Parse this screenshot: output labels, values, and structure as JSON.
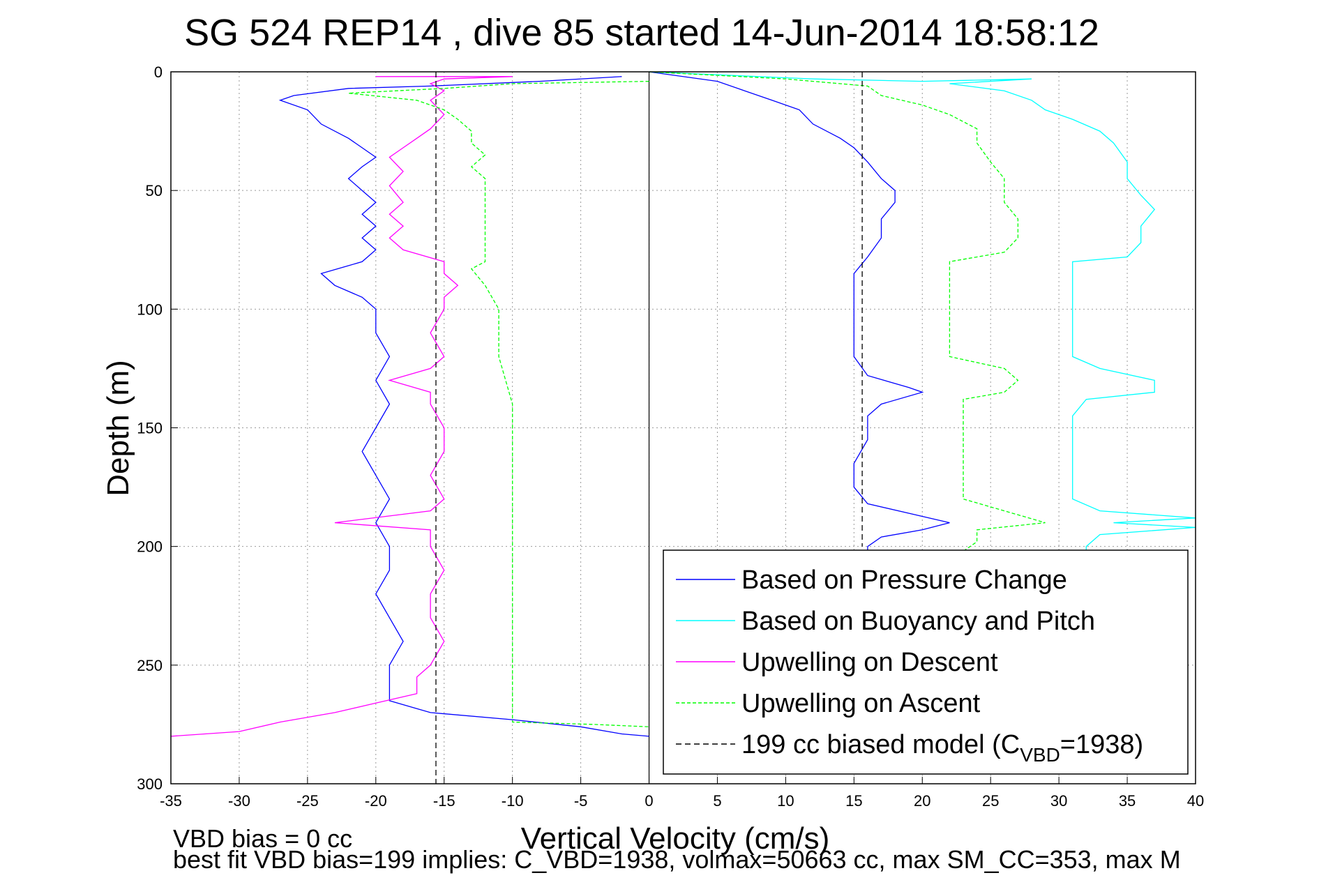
{
  "chart_data": {
    "type": "line",
    "title": "SG 524   REP14  , dive 85 started 14-Jun-2014 18:58:12",
    "xlabel": "Vertical Velocity (cm/s)",
    "ylabel": "Depth (m)",
    "xlim": [
      -35,
      40
    ],
    "ylim": [
      0,
      300
    ],
    "y_reversed": true,
    "grid": true,
    "legend_placement": "bottom-right",
    "x_ticks": [
      "-35",
      "-30",
      "-25",
      "-20",
      "-15",
      "-10",
      "-5",
      "0",
      "5",
      "10",
      "15",
      "20",
      "25",
      "30",
      "35",
      "40"
    ],
    "y_ticks": [
      "0",
      "50",
      "100",
      "150",
      "200",
      "250",
      "300"
    ],
    "series": [
      {
        "name": "Based on Pressure Change",
        "color": "#0000ff",
        "style": "solid",
        "points": [
          [
            -2,
            2
          ],
          [
            -8,
            4
          ],
          [
            -16,
            6
          ],
          [
            -22,
            7
          ],
          [
            -26,
            10
          ],
          [
            -27,
            12
          ],
          [
            -25,
            16
          ],
          [
            -24,
            22
          ],
          [
            -22,
            28
          ],
          [
            -21,
            32
          ],
          [
            -20,
            36
          ],
          [
            -21,
            40
          ],
          [
            -22,
            45
          ],
          [
            -21,
            50
          ],
          [
            -20,
            55
          ],
          [
            -21,
            60
          ],
          [
            -20,
            65
          ],
          [
            -21,
            70
          ],
          [
            -20,
            75
          ],
          [
            -21,
            80
          ],
          [
            -24,
            85
          ],
          [
            -23,
            90
          ],
          [
            -21,
            95
          ],
          [
            -20,
            100
          ],
          [
            -20,
            110
          ],
          [
            -19,
            120
          ],
          [
            -20,
            130
          ],
          [
            -19,
            140
          ],
          [
            -20,
            150
          ],
          [
            -21,
            160
          ],
          [
            -20,
            170
          ],
          [
            -19,
            180
          ],
          [
            -20,
            190
          ],
          [
            -19,
            200
          ],
          [
            -19,
            210
          ],
          [
            -20,
            220
          ],
          [
            -19,
            230
          ],
          [
            -18,
            240
          ],
          [
            -19,
            250
          ],
          [
            -19,
            260
          ],
          [
            -19,
            265
          ],
          [
            -16,
            270
          ],
          [
            -10,
            273
          ],
          [
            -5,
            276
          ],
          [
            -2,
            279
          ],
          [
            0,
            280
          ]
        ]
      },
      {
        "name": "Based on Pressure Change",
        "color": "#0000ff",
        "style": "solid",
        "points": [
          [
            0,
            0
          ],
          [
            5,
            4
          ],
          [
            7,
            8
          ],
          [
            9,
            12
          ],
          [
            11,
            16
          ],
          [
            12,
            22
          ],
          [
            14,
            28
          ],
          [
            15,
            32
          ],
          [
            16,
            38
          ],
          [
            17,
            45
          ],
          [
            18,
            50
          ],
          [
            18,
            55
          ],
          [
            17,
            62
          ],
          [
            17,
            70
          ],
          [
            16,
            78
          ],
          [
            15,
            85
          ],
          [
            15,
            95
          ],
          [
            15,
            110
          ],
          [
            15,
            120
          ],
          [
            16,
            128
          ],
          [
            19,
            133
          ],
          [
            20,
            135
          ],
          [
            17,
            140
          ],
          [
            16,
            145
          ],
          [
            16,
            155
          ],
          [
            15,
            165
          ],
          [
            15,
            175
          ],
          [
            16,
            182
          ],
          [
            19,
            186
          ],
          [
            22,
            190
          ],
          [
            20,
            193
          ],
          [
            17,
            196
          ],
          [
            16,
            200
          ],
          [
            16,
            202
          ]
        ]
      },
      {
        "name": "Based on Buoyancy and Pitch",
        "color": "#00ffff",
        "style": "solid",
        "points": [
          [
            0,
            0
          ],
          [
            12,
            3
          ],
          [
            20,
            4
          ],
          [
            28,
            3
          ],
          [
            22,
            5
          ],
          [
            26,
            8
          ],
          [
            28,
            12
          ],
          [
            29,
            16
          ],
          [
            31,
            20
          ],
          [
            33,
            25
          ],
          [
            34,
            30
          ],
          [
            35,
            38
          ],
          [
            35,
            45
          ],
          [
            36,
            52
          ],
          [
            37,
            58
          ],
          [
            36,
            65
          ],
          [
            36,
            72
          ],
          [
            35,
            78
          ],
          [
            31,
            80
          ],
          [
            31,
            90
          ],
          [
            31,
            100
          ],
          [
            31,
            110
          ],
          [
            31,
            120
          ],
          [
            33,
            125
          ],
          [
            37,
            130
          ],
          [
            37,
            135
          ],
          [
            32,
            138
          ],
          [
            31,
            145
          ],
          [
            31,
            160
          ],
          [
            31,
            170
          ],
          [
            31,
            180
          ],
          [
            33,
            185
          ],
          [
            40,
            188
          ],
          [
            34,
            190
          ],
          [
            40,
            192
          ],
          [
            33,
            195
          ],
          [
            32,
            200
          ],
          [
            32,
            202
          ]
        ]
      },
      {
        "name": "Upwelling on Descent",
        "color": "#ff00ff",
        "style": "solid",
        "points": [
          [
            -20,
            2
          ],
          [
            -10,
            2
          ],
          [
            -15,
            3
          ],
          [
            -16,
            5
          ],
          [
            -15,
            8
          ],
          [
            -16,
            12
          ],
          [
            -15,
            18
          ],
          [
            -16,
            24
          ],
          [
            -17,
            28
          ],
          [
            -18,
            32
          ],
          [
            -19,
            36
          ],
          [
            -18,
            42
          ],
          [
            -19,
            48
          ],
          [
            -18,
            55
          ],
          [
            -19,
            60
          ],
          [
            -18,
            65
          ],
          [
            -19,
            70
          ],
          [
            -18,
            75
          ],
          [
            -15,
            80
          ],
          [
            -15,
            85
          ],
          [
            -14,
            90
          ],
          [
            -15,
            95
          ],
          [
            -15,
            100
          ],
          [
            -16,
            110
          ],
          [
            -15,
            120
          ],
          [
            -16,
            125
          ],
          [
            -19,
            130
          ],
          [
            -16,
            135
          ],
          [
            -16,
            140
          ],
          [
            -15,
            150
          ],
          [
            -15,
            160
          ],
          [
            -16,
            170
          ],
          [
            -15,
            180
          ],
          [
            -16,
            185
          ],
          [
            -23,
            190
          ],
          [
            -16,
            193
          ],
          [
            -16,
            200
          ],
          [
            -15,
            210
          ],
          [
            -16,
            220
          ],
          [
            -16,
            230
          ],
          [
            -15,
            240
          ],
          [
            -16,
            250
          ],
          [
            -17,
            255
          ],
          [
            -17,
            262
          ],
          [
            -20,
            266
          ],
          [
            -23,
            270
          ],
          [
            -27,
            274
          ],
          [
            -30,
            278
          ],
          [
            -35,
            280
          ]
        ]
      },
      {
        "name": "Upwelling on Ascent",
        "color": "#00ff00",
        "style": "dashed",
        "points": [
          [
            0,
            4
          ],
          [
            -10,
            5
          ],
          [
            -15,
            7
          ],
          [
            -22,
            9
          ],
          [
            -17,
            12
          ],
          [
            -15,
            16
          ],
          [
            -14,
            20
          ],
          [
            -13,
            25
          ],
          [
            -13,
            30
          ],
          [
            -12,
            35
          ],
          [
            -13,
            40
          ],
          [
            -12,
            45
          ],
          [
            -12,
            55
          ],
          [
            -12,
            65
          ],
          [
            -12,
            75
          ],
          [
            -12,
            80
          ],
          [
            -13,
            83
          ],
          [
            -12,
            90
          ],
          [
            -11,
            100
          ],
          [
            -11,
            120
          ],
          [
            -10,
            140
          ],
          [
            -10,
            160
          ],
          [
            -10,
            180
          ],
          [
            -10,
            200
          ],
          [
            -10,
            220
          ],
          [
            -10,
            230
          ],
          [
            -10,
            240
          ],
          [
            -10,
            260
          ],
          [
            -10,
            274
          ],
          [
            -4,
            275
          ],
          [
            0,
            276
          ]
        ]
      },
      {
        "name": "Upwelling on Ascent",
        "color": "#00ff00",
        "style": "dashed",
        "points": [
          [
            0,
            0
          ],
          [
            10,
            3
          ],
          [
            14,
            5
          ],
          [
            16,
            6
          ],
          [
            17,
            10
          ],
          [
            20,
            14
          ],
          [
            22,
            18
          ],
          [
            24,
            24
          ],
          [
            24,
            30
          ],
          [
            25,
            38
          ],
          [
            26,
            45
          ],
          [
            26,
            55
          ],
          [
            27,
            62
          ],
          [
            27,
            70
          ],
          [
            26,
            76
          ],
          [
            22,
            80
          ],
          [
            22,
            90
          ],
          [
            22,
            100
          ],
          [
            22,
            110
          ],
          [
            22,
            120
          ],
          [
            26,
            125
          ],
          [
            27,
            130
          ],
          [
            26,
            135
          ],
          [
            23,
            138
          ],
          [
            23,
            150
          ],
          [
            23,
            160
          ],
          [
            23,
            170
          ],
          [
            23,
            180
          ],
          [
            26,
            185
          ],
          [
            29,
            190
          ],
          [
            24,
            193
          ],
          [
            24,
            198
          ],
          [
            23,
            202
          ]
        ]
      },
      {
        "name": "199 cc biased model (CVBD=1938)",
        "color": "#000000",
        "style": "dashed",
        "points": [
          [
            -15.6,
            0
          ],
          [
            -15.6,
            300
          ]
        ]
      },
      {
        "name": "199 cc biased model (CVBD=1938)",
        "color": "#000000",
        "style": "dashed",
        "points": [
          [
            15.6,
            0
          ],
          [
            15.6,
            200
          ]
        ]
      }
    ],
    "legend": [
      {
        "label": "Based on Pressure Change",
        "color": "#0000ff",
        "style": "solid"
      },
      {
        "label": "Based on Buoyancy and Pitch",
        "color": "#00ffff",
        "style": "solid"
      },
      {
        "label": "Upwelling on Descent",
        "color": "#ff00ff",
        "style": "solid"
      },
      {
        "label": "Upwelling on Ascent",
        "color": "#00ff00",
        "style": "dashed"
      },
      {
        "label_main": "199 cc biased model (C",
        "label_sub": "VBD",
        "label_tail": "=1938)",
        "color": "#000000",
        "style": "dashed"
      }
    ],
    "footer_line1": "VBD bias = 0 cc",
    "footer_line2": "best fit VBD bias=199 implies: C_VBD=1938, volmax=50663 cc, max SM_CC=353, max M"
  }
}
